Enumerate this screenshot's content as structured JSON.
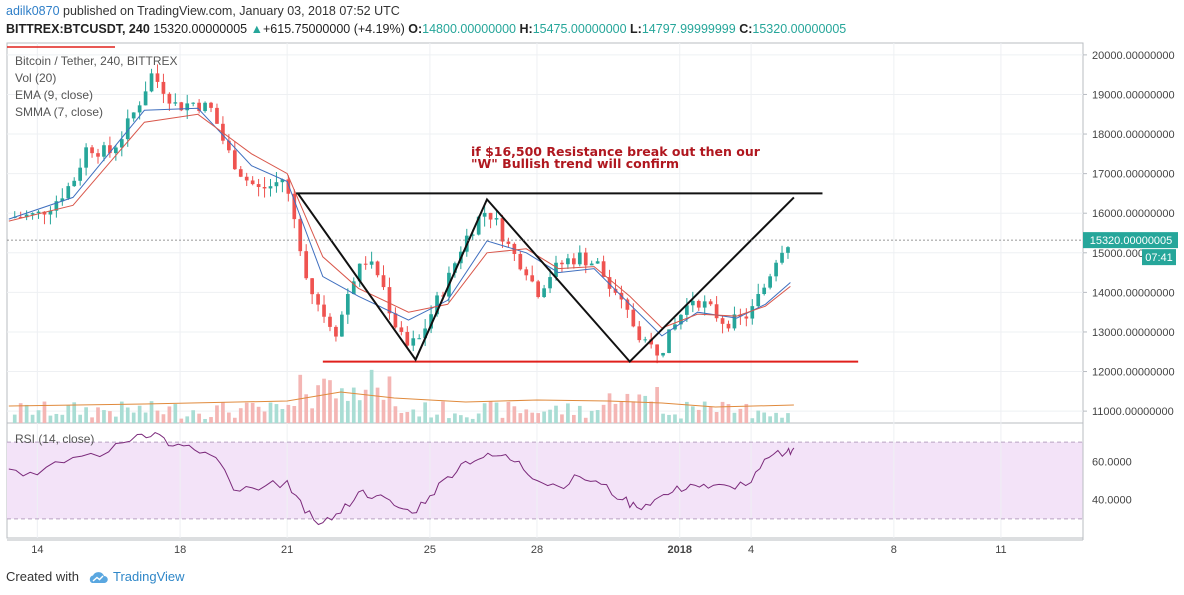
{
  "header": {
    "username": "adilk0870",
    "published_text": "published on TradingView.com, January 03, 2018 07:52 UTC",
    "symbol": "BITTREX:BTCUSDT, 240",
    "last": "15320.00000005",
    "change": "+615.75000000 (+4.19%)",
    "o_label": "O:",
    "o_value": "14800.00000000",
    "h_label": "H:",
    "h_value": "15475.00000000",
    "l_label": "L:",
    "l_value": "14797.99999999",
    "c_label": "C:",
    "c_value": "15320.00000005"
  },
  "legend": {
    "title": "Bitcoin / Tether, 240, BITTREX",
    "vol": "Vol (20)",
    "ema": "EMA (9, close)",
    "smma": "SMMA (7, close)",
    "rsi": "RSI (14, close)"
  },
  "annotation": {
    "line1": "if  $16,500 Resistance break out then our",
    "line2": "\"W\" Bullish trend will confirm"
  },
  "price_badge": "15320.00000005",
  "time_badge": "07:41",
  "footer": {
    "created_with": "Created with",
    "brand": "TradingView"
  },
  "colors": {
    "up": "#26a69a",
    "down": "#ef5350",
    "ema": "#3f6fbf",
    "smma": "#d9574b",
    "rsi": "#7b2a7b",
    "resistance": "#111111",
    "support": "#e0201c"
  },
  "chart_data": [
    {
      "type": "candlestick",
      "title": "Bitcoin / Tether, 240, BITTREX",
      "y_ticks": [
        "11000.00000000",
        "12000.00000000",
        "13000.00000000",
        "14000.00000000",
        "15000.00000000",
        "16000.00000000",
        "17000.00000000",
        "18000.00000000",
        "19000.00000000",
        "20000.00000000"
      ],
      "ylim": [
        10700,
        20300
      ],
      "x_ticks": [
        "14",
        "18",
        "21",
        "25",
        "28",
        "2018",
        "4",
        "8",
        "11"
      ],
      "x_tick_days": [
        14,
        18,
        21,
        25,
        28,
        32,
        34,
        38,
        41
      ],
      "xlim": [
        13.15,
        43.3
      ],
      "x_unit": "day of Dec 2017 (32 = Jan 1, 2018)",
      "close_path": [
        [
          13.2,
          15900
        ],
        [
          14.0,
          15950
        ],
        [
          14.5,
          16300
        ],
        [
          15.0,
          16800
        ],
        [
          15.4,
          17700
        ],
        [
          16.0,
          17500
        ],
        [
          16.4,
          18000
        ],
        [
          16.8,
          18700
        ],
        [
          17.2,
          19500
        ],
        [
          17.5,
          19200
        ],
        [
          17.9,
          18700
        ],
        [
          18.4,
          18800
        ],
        [
          18.9,
          18600
        ],
        [
          19.3,
          17600
        ],
        [
          19.8,
          16900
        ],
        [
          20.2,
          16600
        ],
        [
          20.6,
          16700
        ],
        [
          20.9,
          16900
        ],
        [
          21.3,
          15500
        ],
        [
          21.6,
          14200
        ],
        [
          22.0,
          13500
        ],
        [
          22.4,
          13000
        ],
        [
          22.8,
          14300
        ],
        [
          23.2,
          14800
        ],
        [
          23.6,
          14400
        ],
        [
          23.9,
          13500
        ],
        [
          24.3,
          12600
        ],
        [
          24.7,
          12800
        ],
        [
          25.1,
          13600
        ],
        [
          25.5,
          14300
        ],
        [
          25.9,
          15200
        ],
        [
          26.3,
          15800
        ],
        [
          26.6,
          16100
        ],
        [
          26.9,
          15700
        ],
        [
          27.3,
          15000
        ],
        [
          27.7,
          14600
        ],
        [
          28.0,
          14000
        ],
        [
          28.4,
          14500
        ],
        [
          28.8,
          14800
        ],
        [
          29.2,
          14900
        ],
        [
          29.7,
          14700
        ],
        [
          30.1,
          14000
        ],
        [
          30.5,
          13500
        ],
        [
          30.9,
          12900
        ],
        [
          31.3,
          12500
        ],
        [
          31.6,
          12700
        ],
        [
          32.0,
          13400
        ],
        [
          32.4,
          13900
        ],
        [
          32.8,
          13600
        ],
        [
          33.2,
          13300
        ],
        [
          33.6,
          13250
        ],
        [
          34.0,
          13500
        ],
        [
          34.4,
          14200
        ],
        [
          34.8,
          15100
        ],
        [
          35.1,
          15320
        ]
      ],
      "series": [
        {
          "name": "EMA (9, close)",
          "values": [
            [
              13.2,
              15850
            ],
            [
              15,
              16400
            ],
            [
              17,
              18600
            ],
            [
              18.5,
              18650
            ],
            [
              20,
              17200
            ],
            [
              21,
              16800
            ],
            [
              22,
              14400
            ],
            [
              23,
              13900
            ],
            [
              24.4,
              13300
            ],
            [
              25.5,
              13800
            ],
            [
              26.6,
              15300
            ],
            [
              27.7,
              15000
            ],
            [
              28.6,
              14500
            ],
            [
              29.6,
              14600
            ],
            [
              30.6,
              13700
            ],
            [
              31.5,
              12900
            ],
            [
              32.5,
              13500
            ],
            [
              33.6,
              13350
            ],
            [
              34.4,
              13700
            ],
            [
              35.1,
              14250
            ]
          ]
        },
        {
          "name": "SMMA (7, close)",
          "values": [
            [
              13.2,
              15800
            ],
            [
              15,
              16200
            ],
            [
              17,
              18300
            ],
            [
              18.5,
              18500
            ],
            [
              20,
              17500
            ],
            [
              21,
              17000
            ],
            [
              22,
              14900
            ],
            [
              23,
              14100
            ],
            [
              24.4,
              13500
            ],
            [
              25.5,
              13700
            ],
            [
              26.6,
              15000
            ],
            [
              27.7,
              15100
            ],
            [
              28.6,
              14600
            ],
            [
              29.6,
              14650
            ],
            [
              30.6,
              13900
            ],
            [
              31.5,
              13100
            ],
            [
              32.5,
              13450
            ],
            [
              33.6,
              13400
            ],
            [
              34.4,
              13650
            ],
            [
              35.1,
              14150
            ]
          ]
        }
      ],
      "drawings": {
        "resistance_level": 16500,
        "support_level": 12250,
        "w_pattern": [
          [
            21.3,
            16500
          ],
          [
            24.6,
            12300
          ],
          [
            26.6,
            16350
          ],
          [
            30.6,
            12250
          ],
          [
            35.2,
            16400
          ]
        ]
      }
    },
    {
      "type": "line",
      "name": "RSI (14, close)",
      "y_ticks": [
        "40.0000",
        "60.0000"
      ],
      "ylim": [
        20,
        80
      ],
      "band": [
        30,
        70
      ],
      "values": [
        [
          13.2,
          56
        ],
        [
          14,
          53
        ],
        [
          15,
          62
        ],
        [
          16,
          65
        ],
        [
          16.8,
          74
        ],
        [
          17.3,
          75
        ],
        [
          17.8,
          68
        ],
        [
          18.4,
          66
        ],
        [
          19,
          62
        ],
        [
          19.5,
          45
        ],
        [
          20.2,
          45
        ],
        [
          21,
          50
        ],
        [
          21.5,
          33
        ],
        [
          22,
          28
        ],
        [
          22.5,
          33
        ],
        [
          23,
          44
        ],
        [
          23.5,
          42
        ],
        [
          24,
          37
        ],
        [
          24.5,
          33
        ],
        [
          25,
          42
        ],
        [
          25.5,
          52
        ],
        [
          26,
          60
        ],
        [
          26.5,
          62
        ],
        [
          27,
          63
        ],
        [
          27.5,
          60
        ],
        [
          28,
          50
        ],
        [
          28.6,
          47
        ],
        [
          29.2,
          52
        ],
        [
          29.8,
          48
        ],
        [
          30.4,
          40
        ],
        [
          30.8,
          36
        ],
        [
          31.3,
          40
        ],
        [
          31.8,
          44
        ],
        [
          32.3,
          48
        ],
        [
          32.8,
          46
        ],
        [
          33.4,
          47
        ],
        [
          34,
          49
        ],
        [
          34.5,
          62
        ],
        [
          35,
          65
        ],
        [
          35.2,
          67
        ]
      ]
    }
  ]
}
